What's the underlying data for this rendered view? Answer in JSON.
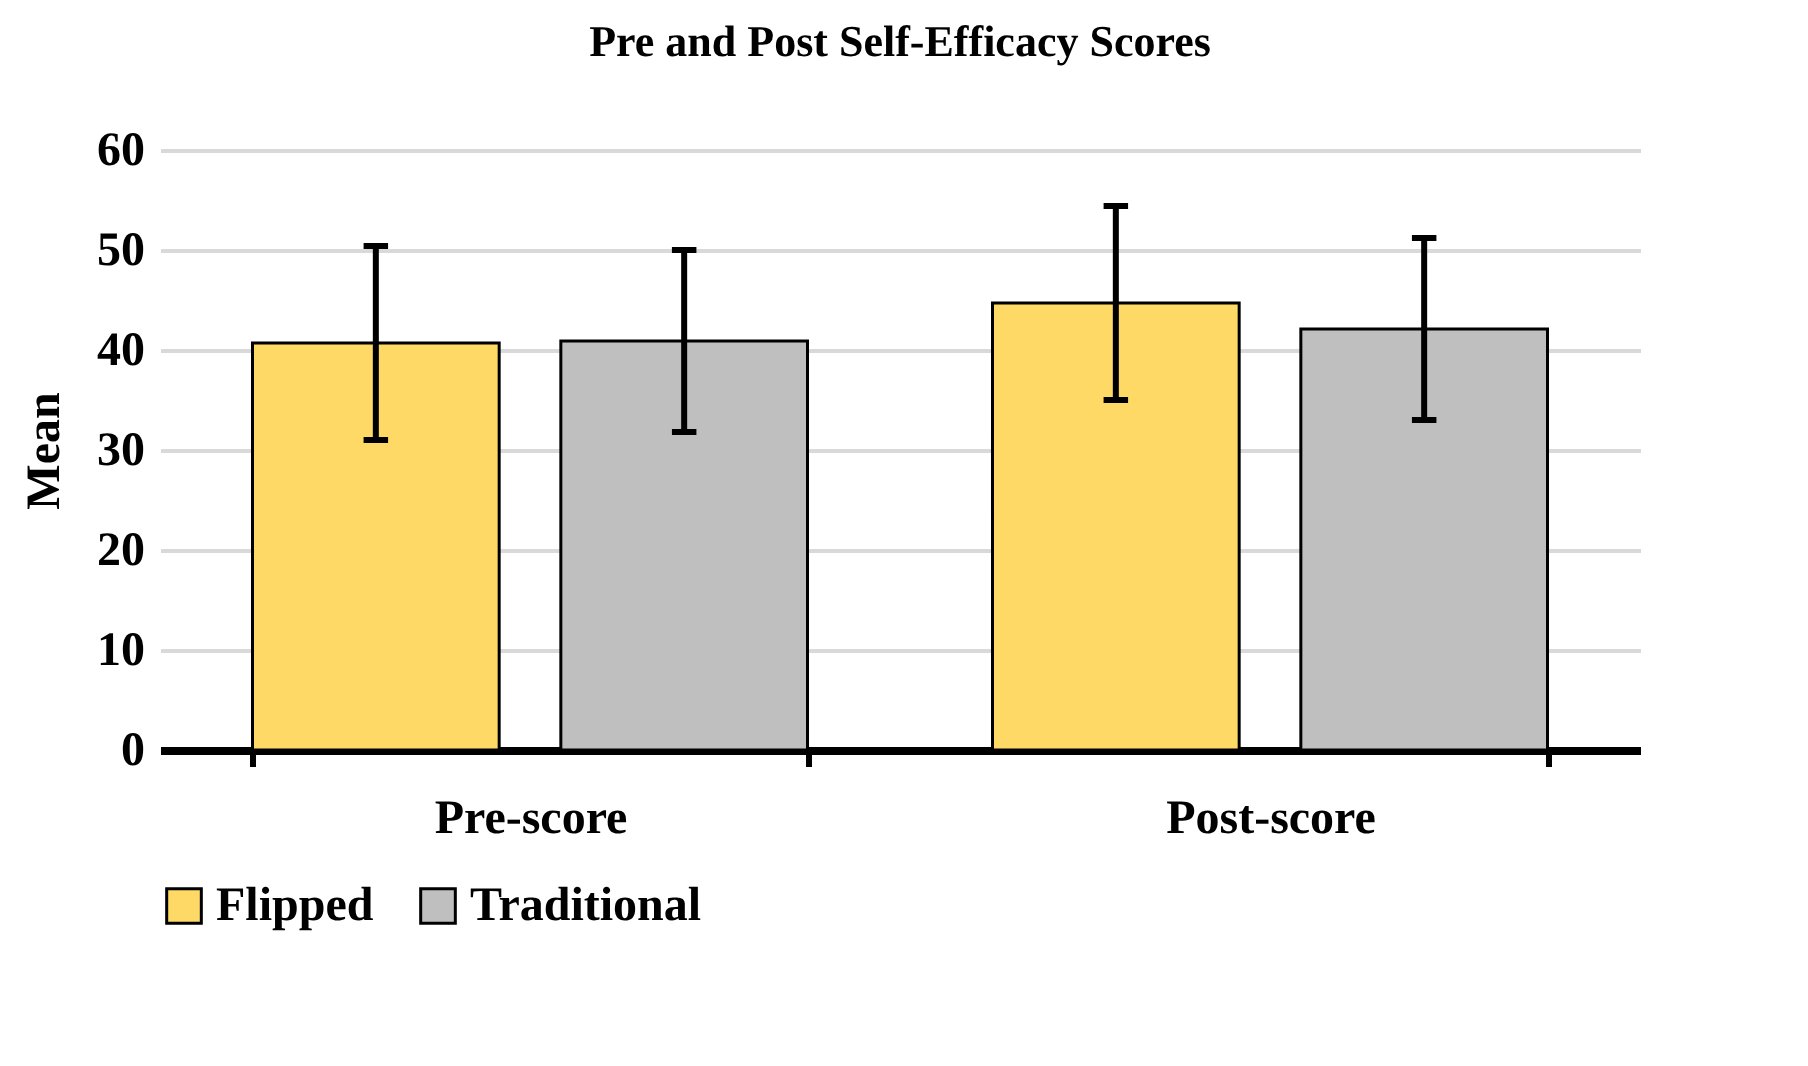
{
  "chart_data": {
    "type": "bar",
    "title": "Pre and Post Self-Efficacy Scores",
    "ylabel": "Mean",
    "categories": [
      "Pre-score",
      "Post-score"
    ],
    "series": [
      {
        "name": "Flipped",
        "color": "#ffd966",
        "values": [
          40.7,
          44.7
        ],
        "errors": [
          9.7,
          9.7
        ]
      },
      {
        "name": "Traditional",
        "color": "#bfbfbf",
        "values": [
          40.9,
          42.1
        ],
        "errors": [
          9.1,
          9.1
        ]
      }
    ],
    "ylim": [
      0,
      60
    ],
    "yticks": [
      0,
      10,
      20,
      30,
      40,
      50,
      60
    ],
    "grid": "y",
    "legend": "bottom"
  }
}
